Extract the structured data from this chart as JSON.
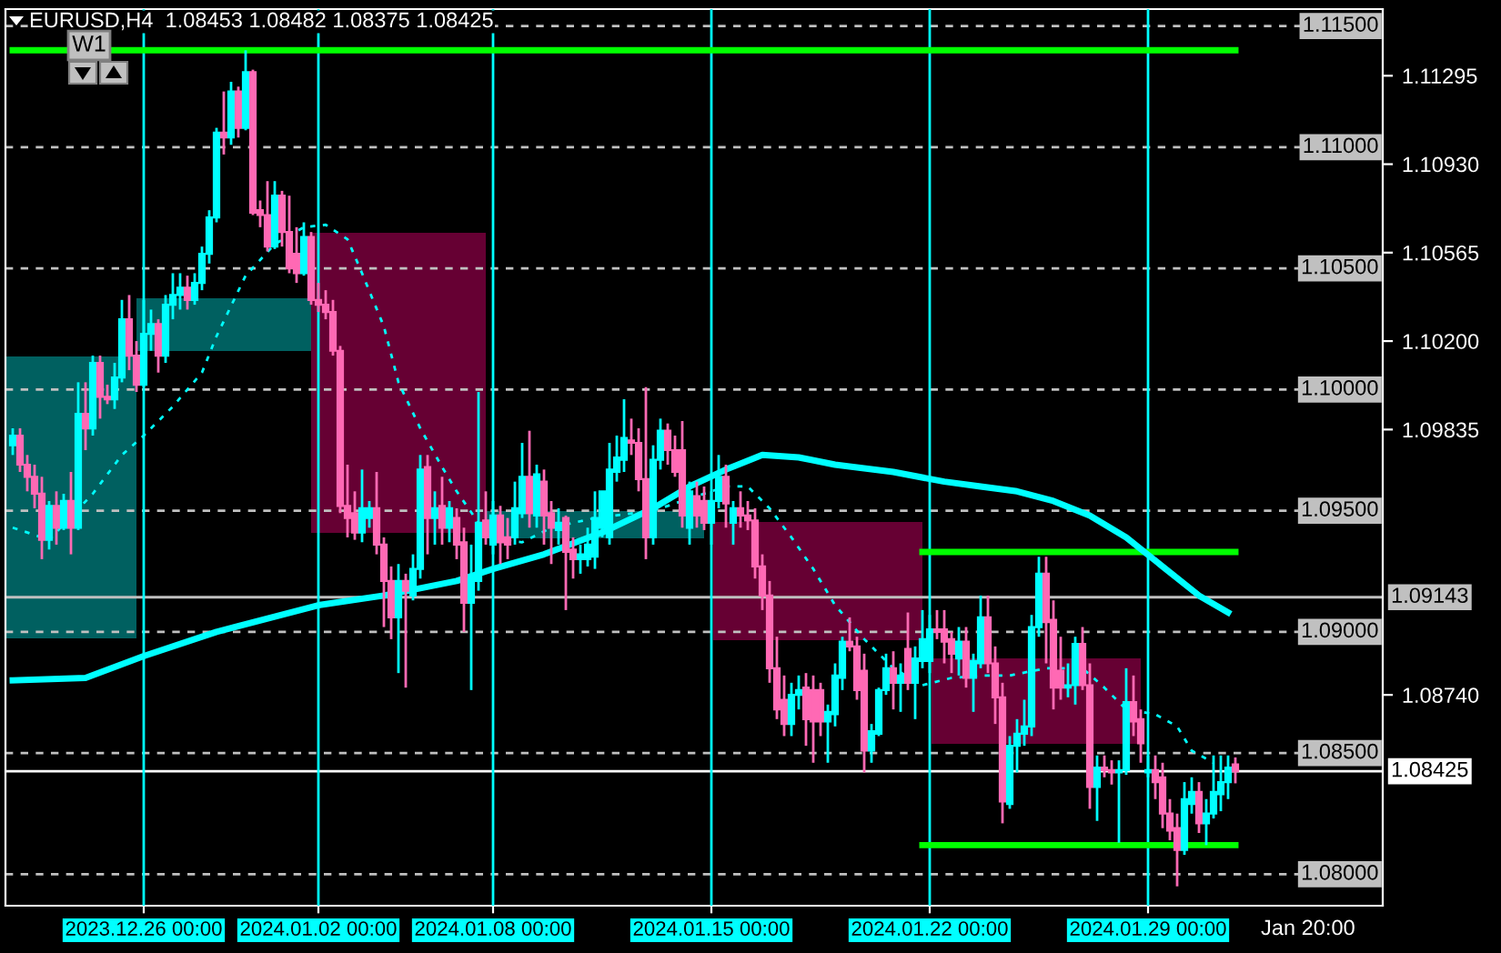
{
  "chart_data": {
    "type": "candlestick",
    "title": "EURUSD,H4  1.08453 1.08482 1.08375 1.08425",
    "annotations": [
      "W1",
      "Jan 20:00"
    ],
    "grid": "x",
    "ylim": [
      1.0787,
      1.1157
    ],
    "yticks": [
      {
        "value": 1.11295,
        "label": "1.11295"
      },
      {
        "value": 1.1093,
        "label": "1.10930"
      },
      {
        "value": 1.10565,
        "label": "1.10565"
      },
      {
        "value": 1.102,
        "label": "1.10200"
      },
      {
        "value": 1.09835,
        "label": "1.09835"
      },
      {
        "value": 1.0874,
        "label": "1.08740"
      }
    ],
    "categories": [
      null,
      null,
      null,
      null,
      null,
      null,
      null,
      null,
      null,
      null,
      null,
      null,
      null,
      null,
      null,
      null,
      null,
      null,
      "2023.12.26 00:00",
      null,
      null,
      null,
      null,
      null,
      null,
      null,
      null,
      null,
      null,
      null,
      null,
      null,
      null,
      null,
      null,
      null,
      null,
      null,
      null,
      null,
      null,
      null,
      "2024.01.02 00:00",
      null,
      null,
      null,
      null,
      null,
      null,
      null,
      null,
      null,
      null,
      null,
      null,
      null,
      null,
      null,
      null,
      null,
      null,
      null,
      null,
      null,
      null,
      null,
      "2024.01.08 00:00",
      null,
      null,
      null,
      null,
      null,
      null,
      null,
      null,
      null,
      null,
      null,
      null,
      null,
      null,
      null,
      null,
      null,
      null,
      null,
      null,
      null,
      null,
      null,
      null,
      null,
      null,
      null,
      null,
      null,
      "2024.01.15 00:00",
      null,
      null,
      null,
      null,
      null,
      null,
      null,
      null,
      null,
      null,
      null,
      null,
      null,
      null,
      null,
      null,
      null,
      null,
      null,
      null,
      null,
      null,
      null,
      null,
      null,
      null,
      null,
      null,
      null,
      "2024.01.22 00:00",
      null,
      null,
      null,
      null,
      null,
      null,
      null,
      null,
      null,
      null,
      null,
      null,
      null,
      null,
      null,
      null,
      null,
      null,
      null,
      null,
      null,
      null,
      null,
      null,
      null,
      null,
      null,
      null,
      null,
      "2024.01.29 00:00",
      null,
      null,
      null,
      null,
      null,
      null,
      null,
      null,
      null,
      null,
      null,
      null
    ],
    "ohlc": [
      [
        1.0977,
        1.0984,
        1.0973,
        1.0981
      ],
      [
        1.0981,
        1.0984,
        1.0966,
        1.0969
      ],
      [
        1.0969,
        1.0973,
        1.0958,
        1.0964
      ],
      [
        1.0964,
        1.0969,
        1.0951,
        1.0957
      ],
      [
        1.0957,
        1.0964,
        1.093,
        1.0938
      ],
      [
        1.0938,
        1.0954,
        1.0934,
        1.0952
      ],
      [
        1.0952,
        1.0958,
        1.0936,
        1.0943
      ],
      [
        1.0943,
        1.0957,
        1.0942,
        1.0954
      ],
      [
        1.0954,
        1.0966,
        1.0932,
        1.0943
      ],
      [
        1.0943,
        1.1003,
        1.0942,
        1.099
      ],
      [
        1.099,
        1.1003,
        1.0975,
        1.0984
      ],
      [
        1.0984,
        1.1014,
        1.0981,
        1.1011
      ],
      [
        1.1011,
        1.1014,
        1.0988,
        1.0997
      ],
      [
        1.0997,
        1.1002,
        1.0994,
        1.0996
      ],
      [
        1.0996,
        1.1011,
        1.0992,
        1.1005
      ],
      [
        1.1005,
        1.1037,
        1.1003,
        1.1029
      ],
      [
        1.1029,
        1.1039,
        1.1008,
        1.1014
      ],
      [
        1.1014,
        1.102,
        1.0999,
        1.1002
      ],
      [
        1.1002,
        1.1037,
        1.1001,
        1.1023
      ],
      [
        1.1023,
        1.1033,
        1.1016,
        1.1027
      ],
      [
        1.1027,
        1.1029,
        1.1007,
        1.1014
      ],
      [
        1.1014,
        1.1039,
        1.1011,
        1.1035
      ],
      [
        1.1035,
        1.1048,
        1.1029,
        1.1039
      ],
      [
        1.1039,
        1.1048,
        1.1033,
        1.1042
      ],
      [
        1.1042,
        1.1047,
        1.1033,
        1.1037
      ],
      [
        1.1037,
        1.1048,
        1.1035,
        1.1044
      ],
      [
        1.1044,
        1.1059,
        1.1041,
        1.1056
      ],
      [
        1.1056,
        1.1074,
        1.1052,
        1.1071
      ],
      [
        1.1071,
        1.1108,
        1.1069,
        1.1106
      ],
      [
        1.1106,
        1.1123,
        1.1097,
        1.1104
      ],
      [
        1.1104,
        1.1127,
        1.1101,
        1.1123
      ],
      [
        1.1123,
        1.1125,
        1.1104,
        1.1108
      ],
      [
        1.1108,
        1.114,
        1.1107,
        1.1131
      ],
      [
        1.1131,
        1.1132,
        1.1072,
        1.1073
      ],
      [
        1.1074,
        1.1078,
        1.1067,
        1.1072
      ],
      [
        1.1072,
        1.1086,
        1.1057,
        1.1059
      ],
      [
        1.1059,
        1.1086,
        1.1058,
        1.108
      ],
      [
        1.108,
        1.1082,
        1.1059,
        1.1065
      ],
      [
        1.1065,
        1.108,
        1.1048,
        1.105
      ],
      [
        1.1056,
        1.1067,
        1.1044,
        1.1048
      ],
      [
        1.1048,
        1.1069,
        1.1047,
        1.1063
      ],
      [
        1.1063,
        1.1065,
        1.1035,
        1.1037
      ],
      [
        1.1037,
        1.1044,
        1.1032,
        1.1035
      ],
      [
        1.1035,
        1.1041,
        1.1029,
        1.1032
      ],
      [
        1.1032,
        1.1037,
        1.1014,
        1.1016
      ],
      [
        1.1016,
        1.1018,
        1.0949,
        1.0952
      ],
      [
        1.0952,
        1.0969,
        1.0939,
        1.0947
      ],
      [
        1.0949,
        1.0958,
        1.0938,
        1.0941
      ],
      [
        1.0941,
        1.0967,
        1.0937,
        1.0951
      ],
      [
        1.0947,
        1.0954,
        1.0943,
        1.0951
      ],
      [
        1.0951,
        1.0966,
        1.0932,
        1.0936
      ],
      [
        1.0936,
        1.0939,
        1.0902,
        1.0921
      ],
      [
        1.0921,
        1.0927,
        1.0897,
        1.0906
      ],
      [
        1.0906,
        1.0928,
        1.0883,
        1.0921
      ],
      [
        1.0921,
        1.0924,
        1.0877,
        1.0917
      ],
      [
        1.0915,
        1.0932,
        1.0913,
        1.0926
      ],
      [
        1.0926,
        1.0973,
        1.0922,
        1.0967
      ],
      [
        1.0968,
        1.0973,
        1.0932,
        1.0947
      ],
      [
        1.0947,
        1.0958,
        1.0936,
        1.0951
      ],
      [
        1.0952,
        1.0964,
        1.0936,
        1.0943
      ],
      [
        1.0943,
        1.0954,
        1.0937,
        1.0951
      ],
      [
        1.0947,
        1.0951,
        1.093,
        1.0936
      ],
      [
        1.0937,
        1.0943,
        1.09,
        1.0912
      ],
      [
        1.0912,
        1.0936,
        1.0876,
        1.0922
      ],
      [
        1.0921,
        1.0999,
        1.0917,
        1.0945
      ],
      [
        1.0946,
        1.0958,
        1.0936,
        1.0939
      ],
      [
        1.0936,
        1.0954,
        1.0932,
        1.0948
      ],
      [
        1.0948,
        1.0952,
        1.0928,
        1.0937
      ],
      [
        1.0939,
        1.0947,
        1.093,
        1.0936
      ],
      [
        1.0939,
        1.0962,
        1.0936,
        1.0951
      ],
      [
        1.0949,
        1.0978,
        1.0947,
        1.0964
      ],
      [
        1.0964,
        1.0983,
        1.0943,
        1.0949
      ],
      [
        1.0948,
        1.0969,
        1.0943,
        1.0965
      ],
      [
        1.0962,
        1.0967,
        1.0936,
        1.0948
      ],
      [
        1.0949,
        1.0954,
        1.0928,
        1.0943
      ],
      [
        1.0942,
        1.0951,
        1.0936,
        1.0945
      ],
      [
        1.0947,
        1.0948,
        1.0909,
        1.0933
      ],
      [
        1.0934,
        1.0939,
        1.0922,
        1.093
      ],
      [
        1.093,
        1.0936,
        1.0924,
        1.0932
      ],
      [
        1.093,
        1.0943,
        1.0927,
        1.0936
      ],
      [
        1.0931,
        1.0958,
        1.0926,
        1.0947
      ],
      [
        1.0943,
        1.0958,
        1.0939,
        1.0958
      ],
      [
        1.0939,
        1.0978,
        1.0936,
        1.0967
      ],
      [
        1.0966,
        1.0981,
        1.0962,
        1.0972
      ],
      [
        1.0971,
        1.0996,
        1.0966,
        1.098
      ],
      [
        1.0979,
        1.0988,
        1.0973,
        1.0978
      ],
      [
        1.0978,
        1.0984,
        1.0958,
        1.0963
      ],
      [
        1.0963,
        1.1001,
        1.093,
        1.0939
      ],
      [
        1.0939,
        1.0977,
        1.0936,
        1.0971
      ],
      [
        1.0971,
        1.0988,
        1.0967,
        1.0983
      ],
      [
        1.0983,
        1.0986,
        1.0969,
        1.0975
      ],
      [
        1.0975,
        1.0981,
        1.0964,
        1.0966
      ],
      [
        1.0975,
        1.0987,
        1.0943,
        1.0948
      ],
      [
        1.0943,
        1.0962,
        1.0936,
        1.0958
      ],
      [
        1.0956,
        1.0962,
        1.0943,
        1.0948
      ],
      [
        1.0954,
        1.096,
        1.0942,
        1.0945
      ],
      [
        1.0945,
        1.0958,
        1.0936,
        1.0954
      ],
      [
        1.0954,
        1.0973,
        1.0951,
        1.0964
      ],
      [
        1.0964,
        1.0969,
        1.0943,
        1.0953
      ],
      [
        1.0945,
        1.0954,
        1.0936,
        1.0951
      ],
      [
        1.0951,
        1.0958,
        1.0943,
        1.0948
      ],
      [
        1.0948,
        1.0954,
        1.0942,
        1.0946
      ],
      [
        1.0946,
        1.0951,
        1.0922,
        1.0927
      ],
      [
        1.0927,
        1.0932,
        1.0909,
        1.0915
      ],
      [
        1.0915,
        1.0921,
        1.0879,
        1.0885
      ],
      [
        1.0885,
        1.0898,
        1.0864,
        1.0868
      ],
      [
        1.0872,
        1.0882,
        1.0857,
        1.0862
      ],
      [
        1.0862,
        1.0879,
        1.0857,
        1.0874
      ],
      [
        1.0874,
        1.0882,
        1.0868,
        1.0876
      ],
      [
        1.0877,
        1.0883,
        1.0853,
        1.0864
      ],
      [
        1.0876,
        1.0882,
        1.0846,
        1.0863
      ],
      [
        1.0876,
        1.0879,
        1.0857,
        1.0863
      ],
      [
        1.0863,
        1.087,
        1.0846,
        1.0867
      ],
      [
        1.0866,
        1.0887,
        1.0861,
        1.0882
      ],
      [
        1.0881,
        1.0898,
        1.0876,
        1.0896
      ],
      [
        1.0896,
        1.0906,
        1.0892,
        1.0894
      ],
      [
        1.0894,
        1.0898,
        1.0872,
        1.0876
      ],
      [
        1.0884,
        1.0891,
        1.0842,
        1.0851
      ],
      [
        1.0851,
        1.0862,
        1.0846,
        1.0859
      ],
      [
        1.0858,
        1.0877,
        1.0857,
        1.0876
      ],
      [
        1.0876,
        1.0891,
        1.0874,
        1.0885
      ],
      [
        1.0885,
        1.0892,
        1.0868,
        1.0879
      ],
      [
        1.0879,
        1.0887,
        1.0867,
        1.0882
      ],
      [
        1.0893,
        1.0908,
        1.0876,
        1.0879
      ],
      [
        1.0879,
        1.0894,
        1.0864,
        1.0889
      ],
      [
        1.0888,
        1.0909,
        1.0885,
        1.0897
      ],
      [
        1.0888,
        1.0907,
        1.0883,
        1.0901
      ],
      [
        1.0901,
        1.0909,
        1.0897,
        1.09
      ],
      [
        1.0901,
        1.0909,
        1.0887,
        1.0896
      ],
      [
        1.0897,
        1.09,
        1.0883,
        1.0891
      ],
      [
        1.0889,
        1.0902,
        1.0882,
        1.0896
      ],
      [
        1.0896,
        1.0902,
        1.0877,
        1.0881
      ],
      [
        1.0881,
        1.0891,
        1.0867,
        1.0888
      ],
      [
        1.0887,
        1.0915,
        1.0885,
        1.0906
      ],
      [
        1.0906,
        1.0915,
        1.0883,
        1.0887
      ],
      [
        1.0887,
        1.0894,
        1.0862,
        1.0873
      ],
      [
        1.0873,
        1.0879,
        1.0821,
        1.083
      ],
      [
        1.0829,
        1.0857,
        1.0827,
        1.0853
      ],
      [
        1.0853,
        1.0864,
        1.0842,
        1.0858
      ],
      [
        1.0858,
        1.0872,
        1.0853,
        1.0861
      ],
      [
        1.0861,
        1.0907,
        1.0857,
        1.0902
      ],
      [
        1.0902,
        1.0931,
        1.0898,
        1.0924
      ],
      [
        1.0924,
        1.0931,
        1.0887,
        1.0904
      ],
      [
        1.0905,
        1.0913,
        1.0868,
        1.0877
      ],
      [
        1.0884,
        1.0898,
        1.0872,
        1.0877
      ],
      [
        1.0877,
        1.0887,
        1.0873,
        1.0878
      ],
      [
        1.0878,
        1.0898,
        1.087,
        1.0895
      ],
      [
        1.0895,
        1.0902,
        1.0876,
        1.0878
      ],
      [
        1.0878,
        1.0887,
        1.0827,
        1.0836
      ],
      [
        1.0836,
        1.0849,
        1.0822,
        1.0844
      ],
      [
        1.0844,
        1.0849,
        1.084,
        1.0843
      ],
      [
        1.0843,
        1.0847,
        1.0837,
        1.0842
      ],
      [
        1.0842,
        1.0847,
        1.0813,
        1.0843
      ],
      [
        1.0843,
        1.0885,
        1.0841,
        1.0871
      ],
      [
        1.0871,
        1.0882,
        1.0857,
        1.0863
      ],
      [
        1.0864,
        1.0868,
        1.0846,
        1.0854
      ],
      [
        1.0842,
        1.0849,
        1.084,
        1.0843
      ],
      [
        1.0843,
        1.0849,
        1.0831,
        1.0838
      ],
      [
        1.084,
        1.0846,
        1.0819,
        1.0825
      ],
      [
        1.0825,
        1.0831,
        1.0814,
        1.0818
      ],
      [
        1.0819,
        1.0825,
        1.0795,
        1.081
      ],
      [
        1.081,
        1.0838,
        1.0808,
        1.0831
      ],
      [
        1.0829,
        1.084,
        1.0825,
        1.0834
      ],
      [
        1.0834,
        1.0838,
        1.0817,
        1.0821
      ],
      [
        1.0821,
        1.0831,
        1.0812,
        1.0825
      ],
      [
        1.0825,
        1.0849,
        1.0823,
        1.0834
      ],
      [
        1.0833,
        1.0849,
        1.0826,
        1.0838
      ],
      [
        1.0838,
        1.0849,
        1.0831,
        1.0844
      ],
      [
        1.08453,
        1.08482,
        1.08375,
        1.08425
      ]
    ],
    "colors": [
      "#00ffff",
      "#ff69b4",
      "#ff69b4",
      "#ff69b4",
      "#ff69b4",
      "#00ffff",
      "#ff69b4",
      "#00ffff",
      "#ff69b4",
      "#00ffff",
      "#ff69b4",
      "#00ffff",
      "#ff69b4",
      "#ff69b4",
      "#00ffff",
      "#00ffff",
      "#ff69b4",
      "#ff69b4",
      "#00ffff",
      "#00ffff",
      "#ff69b4",
      "#00ffff",
      "#00ffff",
      "#00ffff",
      "#ff69b4",
      "#00ffff",
      "#00ffff",
      "#00ffff",
      "#00ffff",
      "#ff69b4",
      "#00ffff",
      "#ff69b4",
      "#00ffff",
      "#ff69b4",
      "#ff69b4",
      "#ff69b4",
      "#00ffff",
      "#ff69b4",
      "#ff69b4",
      "#ff69b4",
      "#00ffff",
      "#ff69b4",
      "#ff69b4",
      "#ff69b4",
      "#ff69b4",
      "#ff69b4",
      "#ff69b4",
      "#ff69b4",
      "#00ffff",
      "#00ffff",
      "#ff69b4",
      "#ff69b4",
      "#ff69b4",
      "#00ffff",
      "#ff69b4",
      "#00ffff",
      "#00ffff",
      "#ff69b4",
      "#00ffff",
      "#ff69b4",
      "#00ffff",
      "#ff69b4",
      "#ff69b4",
      "#00ffff",
      "#00ffff",
      "#ff69b4",
      "#00ffff",
      "#ff69b4",
      "#ff69b4",
      "#00ffff",
      "#00ffff",
      "#ff69b4",
      "#00ffff",
      "#ff69b4",
      "#ff69b4",
      "#00ffff",
      "#ff69b4",
      "#ff69b4",
      "#00ffff",
      "#00ffff",
      "#00ffff",
      "#00ffff",
      "#00ffff",
      "#00ffff",
      "#00ffff",
      "#ff69b4",
      "#ff69b4",
      "#ff69b4",
      "#00ffff",
      "#00ffff",
      "#ff69b4",
      "#ff69b4",
      "#ff69b4",
      "#00ffff",
      "#ff69b4",
      "#ff69b4",
      "#00ffff",
      "#00ffff",
      "#ff69b4",
      "#00ffff",
      "#ff69b4",
      "#ff69b4",
      "#ff69b4",
      "#ff69b4",
      "#ff69b4",
      "#ff69b4",
      "#ff69b4",
      "#00ffff",
      "#00ffff",
      "#ff69b4",
      "#ff69b4",
      "#ff69b4",
      "#00ffff",
      "#00ffff",
      "#00ffff",
      "#ff69b4",
      "#ff69b4",
      "#ff69b4",
      "#00ffff",
      "#00ffff",
      "#00ffff",
      "#ff69b4",
      "#00ffff",
      "#ff69b4",
      "#00ffff",
      "#00ffff",
      "#00ffff",
      "#ff69b4",
      "#ff69b4",
      "#ff69b4",
      "#00ffff",
      "#ff69b4",
      "#00ffff",
      "#00ffff",
      "#ff69b4",
      "#ff69b4",
      "#ff69b4",
      "#00ffff",
      "#00ffff",
      "#00ffff",
      "#00ffff",
      "#00ffff",
      "#ff69b4",
      "#ff69b4",
      "#ff69b4",
      "#00ffff",
      "#00ffff",
      "#ff69b4",
      "#ff69b4",
      "#00ffff",
      "#ff69b4",
      "#ff69b4",
      "#00ffff",
      "#00ffff",
      "#ff69b4",
      "#ff69b4",
      "#00ffff",
      "#ff69b4",
      "#ff69b4",
      "#ff69b4",
      "#ff69b4",
      "#00ffff",
      "#00ffff",
      "#ff69b4",
      "#00ffff",
      "#00ffff",
      "#00ffff",
      "#00ffff",
      "#ff69b4"
    ],
    "series": [
      {
        "type": "line",
        "color": "#00ff00",
        "line_style": "solid",
        "values": [
          1.114,
          1.114,
          1.114,
          1.114,
          1.114,
          1.114,
          1.114,
          1.114,
          null,
          null,
          null,
          null,
          null,
          null,
          null,
          null,
          1.114,
          1.114,
          1.114,
          1.114,
          1.114,
          1.114,
          1.114,
          1.114,
          1.114,
          1.114,
          1.114,
          1.114,
          1.114,
          1.114,
          1.114,
          1.114,
          1.114,
          1.114,
          1.114,
          1.114,
          1.114,
          1.114,
          1.114,
          1.114,
          1.114,
          1.114,
          1.114,
          1.114,
          1.114,
          1.114,
          1.114,
          1.114,
          1.114,
          1.114,
          1.114,
          1.114,
          1.114,
          1.114,
          1.114,
          1.114,
          1.114,
          1.114,
          1.114,
          1.114,
          1.114,
          1.114,
          1.114,
          1.114,
          1.114,
          1.114,
          1.114,
          1.114,
          1.114,
          1.114,
          1.114,
          1.114,
          1.114,
          1.114,
          1.114,
          1.114,
          1.114,
          1.114,
          1.114,
          1.114,
          1.114,
          1.114,
          1.114,
          1.114,
          1.114,
          1.114,
          1.114,
          1.114,
          1.114,
          1.114,
          1.114,
          1.114,
          1.114,
          1.114,
          1.114,
          1.114,
          1.114,
          1.114,
          1.114,
          1.114,
          1.114,
          1.114,
          1.114,
          1.114,
          1.114,
          1.114,
          1.114,
          1.114,
          1.114,
          1.114,
          1.114,
          1.114,
          1.114,
          1.114,
          1.114,
          1.114,
          1.114,
          1.114,
          1.114,
          1.114,
          1.114,
          1.114,
          1.114,
          1.114,
          1.114,
          1.114,
          1.114,
          1.114,
          1.114,
          1.114,
          1.114,
          1.114,
          1.114,
          1.114,
          1.114,
          1.114,
          1.114,
          1.114,
          1.114,
          1.114,
          1.114,
          1.114,
          1.114,
          1.114,
          1.114,
          1.114,
          1.114,
          1.114,
          1.114,
          1.114,
          1.114,
          1.114,
          1.114,
          1.114,
          1.114,
          1.114,
          1.114,
          1.114,
          1.114,
          1.114,
          1.114,
          1.114,
          1.114,
          1.114,
          1.114,
          1.114,
          1.114,
          1.114,
          1.114
        ]
      },
      {
        "type": "line",
        "color": "#00ff00",
        "line_style": "solid",
        "values": [
          null,
          null,
          null,
          null,
          null,
          null,
          null,
          null,
          null,
          null,
          null,
          null,
          null,
          null,
          null,
          null,
          null,
          null,
          null,
          null,
          null,
          null,
          null,
          null,
          null,
          null,
          null,
          null,
          null,
          null,
          null,
          null,
          null,
          null,
          null,
          null,
          null,
          null,
          null,
          null,
          null,
          null,
          null,
          null,
          null,
          null,
          null,
          null,
          null,
          null,
          null,
          null,
          null,
          null,
          null,
          null,
          null,
          null,
          null,
          null,
          null,
          null,
          null,
          null,
          null,
          null,
          null,
          null,
          null,
          null,
          null,
          null,
          null,
          null,
          null,
          null,
          null,
          null,
          null,
          null,
          null,
          null,
          null,
          null,
          null,
          null,
          null,
          null,
          null,
          null,
          null,
          null,
          null,
          null,
          null,
          null,
          null,
          null,
          null,
          null,
          null,
          null,
          null,
          null,
          null,
          null,
          null,
          null,
          null,
          null,
          null,
          null,
          null,
          null,
          null,
          null,
          null,
          null,
          null,
          null,
          null,
          null,
          null,
          null,
          null,
          1.0933,
          1.0933,
          1.0933,
          1.0933,
          1.0933,
          1.0933,
          1.0933,
          1.0933,
          1.0933,
          1.0933,
          1.0933,
          1.0933,
          1.0933,
          1.0933,
          1.0933,
          1.0933,
          1.0933,
          1.0933,
          1.0933,
          1.0933,
          1.0933,
          1.0933,
          1.0933,
          1.0933,
          1.0933,
          1.0933,
          1.0933,
          1.0933,
          1.0933,
          1.0933,
          1.0933,
          1.0933,
          1.0933,
          1.0933,
          1.0933,
          1.0933,
          1.0933,
          1.0933,
          1.0933,
          1.0933,
          1.0933,
          1.0933,
          1.0933,
          1.0933
        ]
      },
      {
        "type": "line",
        "color": "#00ff00",
        "line_style": "solid",
        "values": [
          null,
          null,
          null,
          null,
          null,
          null,
          null,
          null,
          null,
          null,
          null,
          null,
          null,
          null,
          null,
          null,
          null,
          null,
          null,
          null,
          null,
          null,
          null,
          null,
          null,
          null,
          null,
          null,
          null,
          null,
          null,
          null,
          null,
          null,
          null,
          null,
          null,
          null,
          null,
          null,
          null,
          null,
          null,
          null,
          null,
          null,
          null,
          null,
          null,
          null,
          null,
          null,
          null,
          null,
          null,
          null,
          null,
          null,
          null,
          null,
          null,
          null,
          null,
          null,
          null,
          null,
          null,
          null,
          null,
          null,
          null,
          null,
          null,
          null,
          null,
          null,
          null,
          null,
          null,
          null,
          null,
          null,
          null,
          null,
          null,
          null,
          null,
          null,
          null,
          null,
          null,
          null,
          null,
          null,
          null,
          null,
          null,
          null,
          null,
          null,
          null,
          null,
          null,
          null,
          null,
          null,
          null,
          null,
          null,
          null,
          null,
          null,
          null,
          null,
          null,
          null,
          null,
          null,
          null,
          null,
          null,
          null,
          null,
          null,
          null,
          1.0812,
          1.0812,
          1.0812,
          1.0812,
          1.0812,
          1.0812,
          1.0812,
          1.0812,
          1.0812,
          1.0812,
          1.0812,
          1.0812,
          1.0812,
          1.0812,
          1.0812,
          1.0812,
          1.0812,
          1.0812,
          1.0812,
          1.0812,
          1.0812,
          1.0812,
          1.0812,
          1.0812,
          1.0812,
          1.0812,
          1.0812,
          1.0812,
          1.0812,
          1.0812,
          1.0812,
          1.0812,
          1.0812,
          1.0812,
          1.0812,
          1.0812,
          1.0812,
          1.0812,
          1.0812,
          1.0812,
          1.0812,
          1.0812,
          1.0812,
          1.0812
        ]
      },
      {
        "type": "line",
        "color": "#00ffff",
        "line_style": "solid",
        "values": [
          1.088,
          null,
          null,
          null,
          null,
          null,
          null,
          null,
          null,
          null,
          1.0881,
          null,
          null,
          null,
          null,
          null,
          null,
          null,
          1.089,
          null,
          null,
          null,
          null,
          null,
          null,
          null,
          null,
          null,
          1.09,
          null,
          null,
          null,
          null,
          null,
          null,
          null,
          null,
          null,
          null,
          null,
          null,
          null,
          1.0911,
          null,
          null,
          null,
          null,
          null,
          null,
          null,
          null,
          1.0915,
          null,
          null,
          null,
          null,
          null,
          null,
          null,
          null,
          null,
          1.0921,
          null,
          null,
          null,
          null,
          1.0926,
          null,
          null,
          null,
          null,
          null,
          null,
          1.0932,
          null,
          null,
          null,
          null,
          null,
          null,
          null,
          1.0941,
          null,
          null,
          null,
          null,
          null,
          null,
          1.0951,
          null,
          null,
          null,
          null,
          1.096,
          null,
          null,
          null,
          null,
          1.0967,
          null,
          null,
          null,
          null,
          1.0973,
          null,
          null,
          null,
          null,
          1.0972,
          null,
          null,
          null,
          null,
          1.0969,
          null,
          null,
          null,
          null,
          null,
          null,
          null,
          1.0966,
          null,
          null,
          null,
          null,
          null,
          null,
          1.0962,
          null,
          null,
          null,
          null,
          1.096,
          null,
          null,
          null,
          null,
          1.0958,
          null,
          null,
          null,
          null,
          1.0954,
          null,
          null,
          null,
          null,
          1.0948,
          null,
          null,
          null,
          null,
          1.0939,
          null,
          null,
          null,
          null,
          1.0927,
          null,
          null,
          null,
          null,
          1.0915,
          null,
          null,
          null,
          1.0908,
          null
        ]
      },
      {
        "type": "line",
        "color": "#00ffff",
        "line_style": "dotted",
        "values": [
          1.0943,
          null,
          null,
          null,
          null,
          1.0938,
          null,
          null,
          null,
          null,
          null,
          1.0957,
          null,
          null,
          null,
          1.0973,
          null,
          null,
          1.0981,
          null,
          null,
          null,
          1.0993,
          null,
          null,
          null,
          1.1007,
          null,
          1.1022,
          null,
          null,
          null,
          1.1047,
          null,
          null,
          null,
          1.106,
          null,
          null,
          null,
          1.1067,
          null,
          null,
          1.1068,
          null,
          null,
          1.1062,
          null,
          1.1048,
          null,
          null,
          1.1026,
          null,
          1.1003,
          null,
          null,
          1.0984,
          null,
          null,
          1.0968,
          null,
          1.0958,
          null,
          null,
          1.0945,
          null,
          1.0938,
          null,
          null,
          null,
          1.0937,
          null,
          null,
          null,
          1.0943,
          null,
          null,
          null,
          null,
          null,
          1.0947,
          null,
          null,
          null,
          null,
          null,
          null,
          null,
          1.095,
          null,
          null,
          null,
          null,
          null,
          null,
          null,
          null,
          null,
          1.096,
          null,
          null,
          1.096,
          null,
          null,
          1.0951,
          null,
          null,
          1.0939,
          null,
          null,
          1.0926,
          null,
          null,
          1.0911,
          null,
          null,
          null,
          1.0897,
          null,
          null,
          null,
          1.0885,
          null,
          null,
          null,
          1.0878,
          null,
          null,
          null,
          1.0881,
          null,
          null,
          null,
          1.0882,
          null,
          null,
          null,
          1.0882,
          null,
          null,
          null,
          null,
          1.0885,
          null,
          null,
          null,
          null,
          1.0885,
          null,
          null,
          1.0877,
          null,
          null,
          1.0868,
          null,
          null,
          null,
          1.0866,
          null,
          null,
          1.0861,
          null,
          1.0851,
          null,
          null,
          1.0846,
          null,
          null,
          null
        ]
      }
    ],
    "ref_lines": [
      {
        "axis": "y",
        "value": 1.115,
        "label": "1.11500",
        "color": "#c0c0c0",
        "line_style": "dashed"
      },
      {
        "axis": "y",
        "value": 1.11,
        "label": "1.11000",
        "color": "#c0c0c0",
        "line_style": "dashed"
      },
      {
        "axis": "y",
        "value": 1.105,
        "label": "1.10500",
        "color": "#c0c0c0",
        "line_style": "dashed"
      },
      {
        "axis": "y",
        "value": 1.1,
        "label": "1.10000",
        "color": "#c0c0c0",
        "line_style": "dashed"
      },
      {
        "axis": "y",
        "value": 1.095,
        "label": "1.09500",
        "color": "#c0c0c0",
        "line_style": "dashed"
      },
      {
        "axis": "y",
        "value": 1.09,
        "label": "1.09000",
        "color": "#c0c0c0",
        "line_style": "dashed"
      },
      {
        "axis": "y",
        "value": 1.085,
        "label": "1.08500",
        "color": "#c0c0c0",
        "line_style": "dashed"
      },
      {
        "axis": "y",
        "value": 1.08,
        "label": "1.08000",
        "color": "#c0c0c0",
        "line_style": "dashed"
      },
      {
        "axis": "y",
        "value": 1.09143,
        "label": "1.09143",
        "color": "#c0c0c0",
        "line_style": "solid"
      },
      {
        "axis": "y",
        "value": 1.08425,
        "label": "1.08425",
        "color": "#ffffff",
        "line_style": "solid"
      }
    ]
  }
}
